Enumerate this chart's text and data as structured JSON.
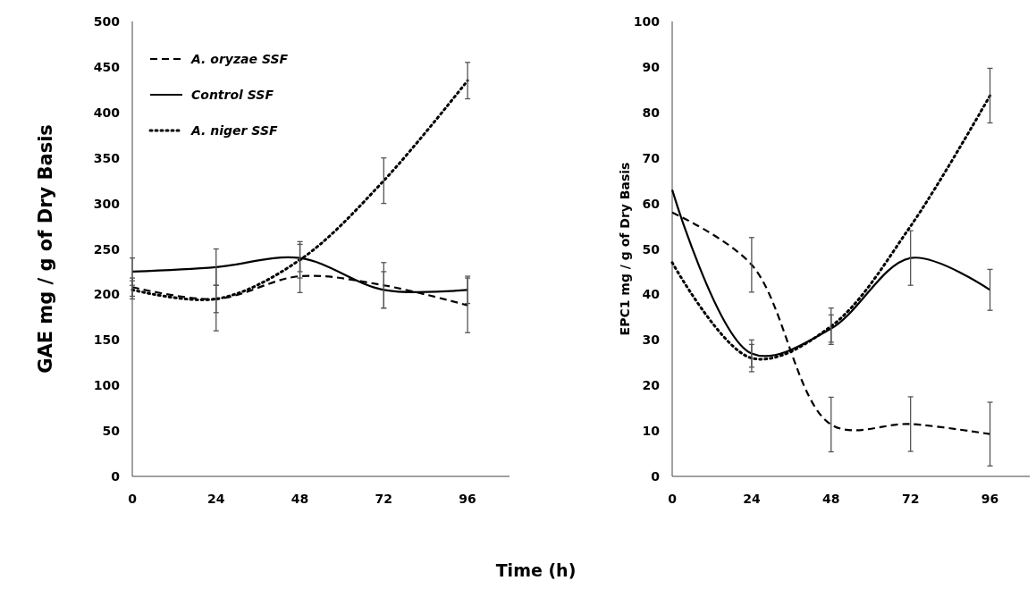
{
  "chart_data": [
    {
      "type": "line",
      "ylabel": "GAE mg / g of  Dry Basis",
      "xlabel": "Time (h)",
      "x": [
        0,
        24,
        48,
        72,
        96
      ],
      "xlim": [
        0,
        108
      ],
      "xticks": [
        0,
        24,
        48,
        72,
        96
      ],
      "ylim": [
        0,
        500
      ],
      "yticks": [
        0,
        50,
        100,
        150,
        200,
        250,
        300,
        350,
        400,
        450,
        500
      ],
      "legend": "top left",
      "grid": false,
      "marker": "none",
      "series": [
        {
          "name": "A. oryzae SSF",
          "color": "#000000",
          "line_style": "dashed",
          "values": [
            208,
            195,
            220,
            210,
            188
          ],
          "errors": [
            10,
            35,
            18,
            25,
            30
          ]
        },
        {
          "name": "Control SSF",
          "color": "#000000",
          "line_style": "solid",
          "values": [
            225,
            230,
            240,
            205,
            205
          ],
          "errors": [
            15,
            20,
            15,
            20,
            15
          ]
        },
        {
          "name": "A. niger SSF",
          "color": "#000000",
          "line_style": "dotted",
          "values": [
            205,
            195,
            238,
            325,
            435
          ],
          "errors": [
            10,
            15,
            20,
            25,
            20
          ]
        }
      ]
    },
    {
      "type": "line",
      "ylabel": "EPC1  mg / g of Dry Basis",
      "x": [
        0,
        24,
        48,
        72,
        96
      ],
      "xlim": [
        0,
        108
      ],
      "xticks": [
        0,
        24,
        48,
        72,
        96
      ],
      "ylim": [
        0,
        100
      ],
      "yticks": [
        0,
        10,
        20,
        30,
        40,
        50,
        60,
        70,
        80,
        90,
        100
      ],
      "legend": false,
      "grid": false,
      "marker": "none",
      "series": [
        {
          "color": "#000000",
          "line_style": "dashed",
          "values": [
            58,
            46.5,
            11.4,
            11.5,
            9.3
          ],
          "errors": [
            null,
            6,
            6,
            6,
            7
          ]
        },
        {
          "color": "#000000",
          "line_style": "solid",
          "values": [
            63,
            27,
            32.5,
            48,
            41
          ],
          "errors": [
            null,
            3,
            3,
            6,
            4.5
          ]
        },
        {
          "color": "#000000",
          "line_style": "dotted",
          "values": [
            47,
            26,
            33,
            55,
            83.7
          ],
          "errors": [
            null,
            3,
            4,
            null,
            6
          ]
        }
      ]
    }
  ]
}
